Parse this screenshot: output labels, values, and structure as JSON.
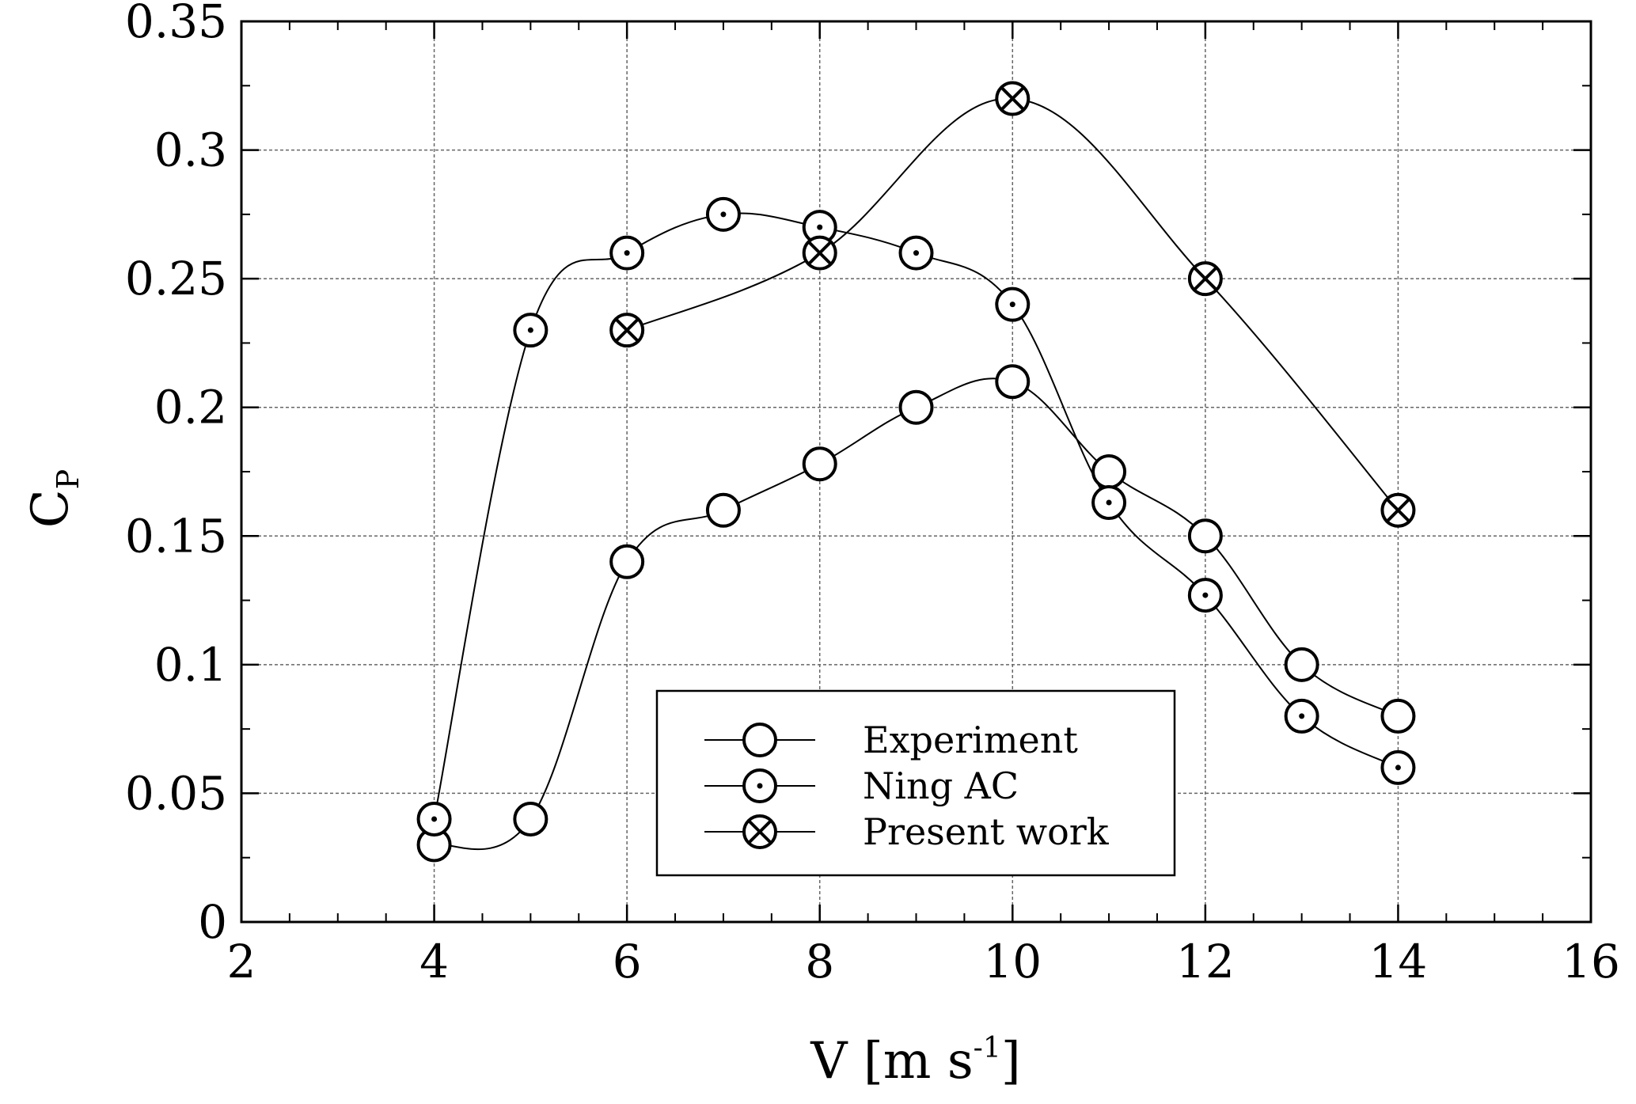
{
  "chart_data": {
    "type": "line",
    "xlabel": "V [m s",
    "xlabel_sup": "-1",
    "xlabel_close": "]",
    "ylabel": "C",
    "ylabel_sub": "P",
    "xlim": [
      2,
      16
    ],
    "ylim": [
      0,
      0.35
    ],
    "xticks": [
      "2",
      "4",
      "6",
      "8",
      "10",
      "12",
      "14",
      "16"
    ],
    "yticks": [
      "0",
      "0.05",
      "0.1",
      "0.15",
      "0.2",
      "0.25",
      "0.3",
      "0.35"
    ],
    "grid": true,
    "legend_position": "lower-center",
    "series": [
      {
        "name": "Experiment",
        "marker": "circle",
        "x": [
          4,
          5,
          6,
          7,
          8,
          9,
          10,
          11,
          12,
          13,
          14
        ],
        "y": [
          0.03,
          0.04,
          0.14,
          0.16,
          0.178,
          0.2,
          0.21,
          0.175,
          0.15,
          0.1,
          0.08
        ]
      },
      {
        "name": "Ning AC",
        "marker": "circle-dot",
        "x": [
          4,
          5,
          6,
          7,
          8,
          9,
          10,
          11,
          12,
          13,
          14
        ],
        "y": [
          0.04,
          0.23,
          0.26,
          0.275,
          0.27,
          0.26,
          0.24,
          0.163,
          0.127,
          0.08,
          0.06
        ]
      },
      {
        "name": "Present work",
        "marker": "circle-cross",
        "x": [
          6,
          8,
          10,
          12,
          14
        ],
        "y": [
          0.23,
          0.26,
          0.32,
          0.25,
          0.16
        ]
      }
    ]
  }
}
